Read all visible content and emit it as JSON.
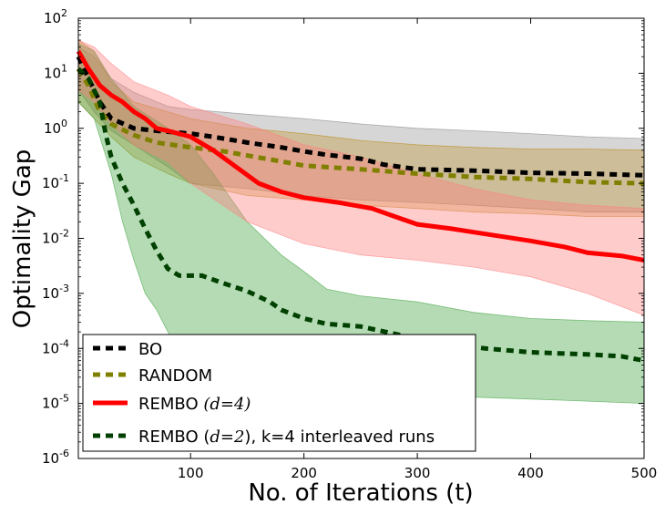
{
  "chart_data": {
    "type": "line",
    "xlabel": "No. of Iterations (t)",
    "ylabel": "Optimality Gap",
    "xlim": [
      1,
      500
    ],
    "ylim_log10": [
      -6,
      2
    ],
    "yscale": "log",
    "x_ticks": [
      100,
      200,
      300,
      400,
      500
    ],
    "x_tick_labels": [
      "100",
      "200",
      "300",
      "400",
      "500"
    ],
    "y_ticks_log10": [
      -6,
      -5,
      -4,
      -3,
      -2,
      -1,
      0,
      1,
      2
    ],
    "y_tick_labels": [
      {
        "base": "10",
        "exp": "-6"
      },
      {
        "base": "10",
        "exp": "-5"
      },
      {
        "base": "10",
        "exp": "-4"
      },
      {
        "base": "10",
        "exp": "-3"
      },
      {
        "base": "10",
        "exp": "-2"
      },
      {
        "base": "10",
        "exp": "-1"
      },
      {
        "base": "10",
        "exp": "0"
      },
      {
        "base": "10",
        "exp": "1"
      },
      {
        "base": "10",
        "exp": "2"
      }
    ],
    "legend_position": "bottom-left",
    "series": [
      {
        "name": "BO",
        "color": "#000000",
        "fill_color": "#808080",
        "linestyle": "dashed",
        "mean": [
          [
            1,
            20
          ],
          [
            10,
            8
          ],
          [
            20,
            3
          ],
          [
            30,
            1.5
          ],
          [
            50,
            1.0
          ],
          [
            70,
            0.9
          ],
          [
            100,
            0.8
          ],
          [
            120,
            0.7
          ],
          [
            150,
            0.55
          ],
          [
            180,
            0.45
          ],
          [
            200,
            0.38
          ],
          [
            220,
            0.33
          ],
          [
            250,
            0.28
          ],
          [
            270,
            0.22
          ],
          [
            300,
            0.18
          ],
          [
            350,
            0.17
          ],
          [
            400,
            0.155
          ],
          [
            450,
            0.15
          ],
          [
            500,
            0.14
          ]
        ],
        "upper": [
          [
            1,
            30
          ],
          [
            15,
            20
          ],
          [
            30,
            8
          ],
          [
            50,
            4.5
          ],
          [
            80,
            2.5
          ],
          [
            100,
            2.2
          ],
          [
            150,
            1.8
          ],
          [
            200,
            1.5
          ],
          [
            250,
            1.2
          ],
          [
            300,
            1.0
          ],
          [
            350,
            0.9
          ],
          [
            400,
            0.8
          ],
          [
            450,
            0.7
          ],
          [
            500,
            0.65
          ]
        ],
        "lower": [
          [
            1,
            5
          ],
          [
            15,
            2
          ],
          [
            30,
            0.9
          ],
          [
            50,
            0.5
          ],
          [
            80,
            0.2
          ],
          [
            100,
            0.1
          ],
          [
            150,
            0.08
          ],
          [
            200,
            0.06
          ],
          [
            250,
            0.05
          ],
          [
            300,
            0.045
          ],
          [
            350,
            0.04
          ],
          [
            400,
            0.035
          ],
          [
            450,
            0.03
          ],
          [
            500,
            0.03
          ]
        ]
      },
      {
        "name": "RANDOM",
        "color": "#808000",
        "fill_color": "#b8860b",
        "linestyle": "dashed",
        "mean": [
          [
            1,
            12
          ],
          [
            10,
            6
          ],
          [
            20,
            2
          ],
          [
            30,
            1.2
          ],
          [
            50,
            0.75
          ],
          [
            70,
            0.55
          ],
          [
            100,
            0.45
          ],
          [
            130,
            0.38
          ],
          [
            150,
            0.32
          ],
          [
            180,
            0.25
          ],
          [
            200,
            0.21
          ],
          [
            250,
            0.18
          ],
          [
            300,
            0.15
          ],
          [
            350,
            0.13
          ],
          [
            400,
            0.12
          ],
          [
            450,
            0.105
          ],
          [
            500,
            0.1
          ]
        ],
        "upper": [
          [
            1,
            40
          ],
          [
            15,
            25
          ],
          [
            30,
            7
          ],
          [
            50,
            3.0
          ],
          [
            80,
            2.0
          ],
          [
            100,
            1.5
          ],
          [
            150,
            1.0
          ],
          [
            200,
            0.8
          ],
          [
            250,
            0.6
          ],
          [
            300,
            0.5
          ],
          [
            350,
            0.45
          ],
          [
            400,
            0.42
          ],
          [
            450,
            0.42
          ],
          [
            500,
            0.4
          ]
        ],
        "lower": [
          [
            1,
            3
          ],
          [
            15,
            1.5
          ],
          [
            30,
            0.7
          ],
          [
            50,
            0.3
          ],
          [
            80,
            0.15
          ],
          [
            100,
            0.1
          ],
          [
            150,
            0.06
          ],
          [
            200,
            0.05
          ],
          [
            250,
            0.04
          ],
          [
            300,
            0.035
          ],
          [
            350,
            0.03
          ],
          [
            400,
            0.028
          ],
          [
            450,
            0.025
          ],
          [
            500,
            0.025
          ]
        ]
      },
      {
        "name": "REMBO (d=4)",
        "color": "#ff0000",
        "fill_color": "#ff7f7f",
        "linestyle": "solid",
        "mean": [
          [
            1,
            25
          ],
          [
            10,
            12
          ],
          [
            20,
            6
          ],
          [
            30,
            4
          ],
          [
            40,
            3
          ],
          [
            50,
            2
          ],
          [
            60,
            1.5
          ],
          [
            70,
            1.0
          ],
          [
            80,
            0.9
          ],
          [
            100,
            0.7
          ],
          [
            120,
            0.4
          ],
          [
            140,
            0.2
          ],
          [
            160,
            0.1
          ],
          [
            180,
            0.07
          ],
          [
            200,
            0.055
          ],
          [
            230,
            0.045
          ],
          [
            260,
            0.035
          ],
          [
            280,
            0.025
          ],
          [
            300,
            0.018
          ],
          [
            330,
            0.015
          ],
          [
            360,
            0.012
          ],
          [
            400,
            0.009
          ],
          [
            430,
            0.007
          ],
          [
            450,
            0.0055
          ],
          [
            480,
            0.0048
          ],
          [
            500,
            0.004
          ]
        ],
        "upper": [
          [
            1,
            40
          ],
          [
            15,
            30
          ],
          [
            30,
            15
          ],
          [
            50,
            7
          ],
          [
            80,
            4
          ],
          [
            100,
            2.5
          ],
          [
            150,
            1.2
          ],
          [
            200,
            0.5
          ],
          [
            250,
            0.3
          ],
          [
            300,
            0.15
          ],
          [
            350,
            0.08
          ],
          [
            400,
            0.05
          ],
          [
            450,
            0.04
          ],
          [
            500,
            0.035
          ]
        ],
        "lower": [
          [
            1,
            5
          ],
          [
            15,
            3
          ],
          [
            30,
            1.2
          ],
          [
            50,
            0.5
          ],
          [
            80,
            0.25
          ],
          [
            100,
            0.1
          ],
          [
            150,
            0.02
          ],
          [
            200,
            0.008
          ],
          [
            250,
            0.005
          ],
          [
            300,
            0.004
          ],
          [
            350,
            0.003
          ],
          [
            400,
            0.002
          ],
          [
            450,
            0.001
          ],
          [
            500,
            0.0004
          ]
        ]
      },
      {
        "name": "REMBO (d=2), k=4 interleaved runs",
        "color": "#004000",
        "fill_color": "#3aa03a",
        "linestyle": "dashed",
        "mean": [
          [
            1,
            12
          ],
          [
            10,
            8
          ],
          [
            20,
            3
          ],
          [
            25,
            0.8
          ],
          [
            30,
            0.3
          ],
          [
            40,
            0.1
          ],
          [
            50,
            0.04
          ],
          [
            60,
            0.015
          ],
          [
            70,
            0.006
          ],
          [
            80,
            0.0028
          ],
          [
            90,
            0.0021
          ],
          [
            110,
            0.0021
          ],
          [
            130,
            0.0015
          ],
          [
            150,
            0.0011
          ],
          [
            170,
            0.0007
          ],
          [
            180,
            0.0005
          ],
          [
            200,
            0.00035
          ],
          [
            220,
            0.00028
          ],
          [
            250,
            0.00025
          ],
          [
            300,
            0.00015
          ],
          [
            330,
            0.00012
          ],
          [
            360,
            0.0001
          ],
          [
            400,
            8.5e-05
          ],
          [
            450,
            7.8e-05
          ],
          [
            480,
            7.2e-05
          ],
          [
            500,
            6e-05
          ]
        ],
        "upper": [
          [
            1,
            35
          ],
          [
            15,
            25
          ],
          [
            30,
            8
          ],
          [
            50,
            2.5
          ],
          [
            80,
            1.0
          ],
          [
            100,
            0.5
          ],
          [
            120,
            0.15
          ],
          [
            150,
            0.02
          ],
          [
            180,
            0.005
          ],
          [
            200,
            0.0025
          ],
          [
            220,
            0.0012
          ],
          [
            250,
            0.0009
          ],
          [
            300,
            0.0007
          ],
          [
            350,
            0.00045
          ],
          [
            400,
            0.00035
          ],
          [
            450,
            0.00032
          ],
          [
            500,
            0.0003
          ]
        ],
        "lower": [
          [
            1,
            3
          ],
          [
            15,
            1.5
          ],
          [
            30,
            0.15
          ],
          [
            40,
            0.02
          ],
          [
            50,
            0.004
          ],
          [
            60,
            0.001
          ],
          [
            70,
            0.0005
          ],
          [
            80,
            0.0002
          ],
          [
            90,
            8e-05
          ],
          [
            100,
            4e-05
          ],
          [
            120,
            2e-05
          ],
          [
            150,
            1.6e-05
          ],
          [
            200,
            1.6e-05
          ],
          [
            250,
            1.5e-05
          ],
          [
            300,
            1.5e-05
          ],
          [
            350,
            1.3e-05
          ],
          [
            400,
            1.2e-05
          ],
          [
            450,
            1.1e-05
          ],
          [
            500,
            1e-05
          ]
        ]
      }
    ],
    "legend": [
      {
        "base": "BO",
        "math": "",
        "rest": ""
      },
      {
        "base": "RANDOM",
        "math": "",
        "rest": ""
      },
      {
        "base": "REMBO ",
        "math": "(d=4)",
        "rest": ""
      },
      {
        "base": "REMBO (",
        "math": "d=2",
        "rest": "), k=4 interleaved runs"
      }
    ]
  }
}
